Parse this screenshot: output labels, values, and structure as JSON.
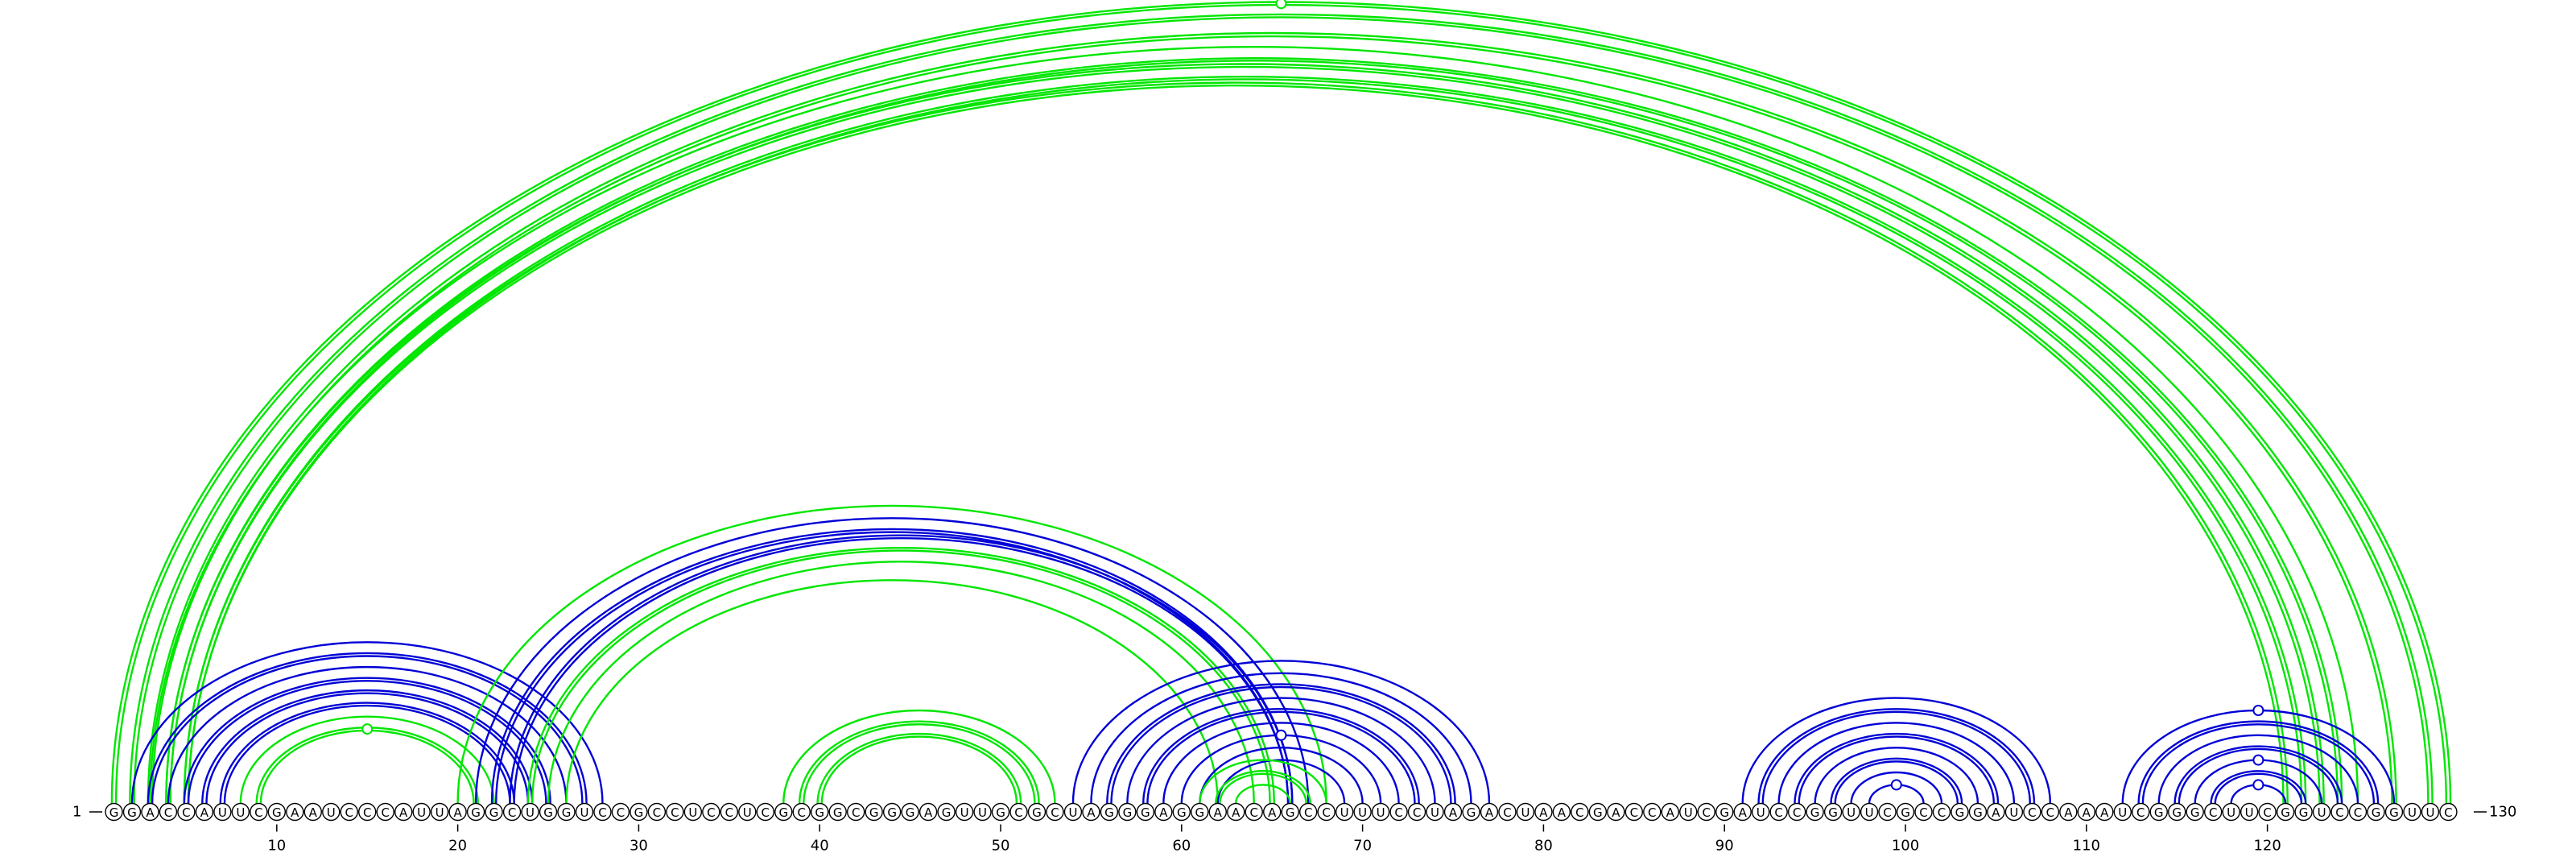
{
  "sequence": "GGACCAUUCGAAUCCCAUUAGGCUGGUCCGCCUCCUCGCGGCGGGAGUUGCGCUAGGGAGGAACAGCCUUUCCUAGACUAACGACCAUCGAUCCGGUUCGCCGGAUCCAAAUCGGGCUUCGGUCCGGUUC",
  "start_label": "1",
  "end_label": "130",
  "tick_labels": [
    "10",
    "20",
    "30",
    "40",
    "50",
    "60",
    "70",
    "80",
    "90",
    "100",
    "110",
    "120"
  ],
  "colors": {
    "green": "#00e600",
    "blue": "#0000d6"
  },
  "arcs": [
    {
      "i": 1,
      "j": 130,
      "color": "green",
      "double": true
    },
    {
      "i": 2,
      "j": 129,
      "color": "green",
      "double": true
    },
    {
      "i": 3,
      "j": 127,
      "color": "green",
      "double": true
    },
    {
      "i": 3,
      "j": 125,
      "color": "green",
      "double": false
    },
    {
      "i": 4,
      "j": 124,
      "color": "green",
      "double": true
    },
    {
      "i": 4,
      "j": 123,
      "color": "green",
      "double": true
    },
    {
      "i": 5,
      "j": 122,
      "color": "green",
      "double": true
    },
    {
      "i": 5,
      "j": 121,
      "color": "green",
      "double": true
    },
    {
      "i": 2,
      "j": 28,
      "color": "blue",
      "double": false
    },
    {
      "i": 3,
      "j": 27,
      "color": "blue",
      "double": true
    },
    {
      "i": 4,
      "j": 26,
      "color": "blue",
      "double": false
    },
    {
      "i": 5,
      "j": 25,
      "color": "blue",
      "double": true
    },
    {
      "i": 6,
      "j": 24,
      "color": "blue",
      "double": true
    },
    {
      "i": 7,
      "j": 23,
      "color": "blue",
      "double": true
    },
    {
      "i": 8,
      "j": 22,
      "color": "green",
      "double": false
    },
    {
      "i": 9,
      "j": 21,
      "color": "green",
      "double": true
    },
    {
      "i": 20,
      "j": 68,
      "color": "green",
      "double": false
    },
    {
      "i": 21,
      "j": 67,
      "color": "blue",
      "double": false
    },
    {
      "i": 22,
      "j": 66,
      "color": "blue",
      "double": true
    },
    {
      "i": 23,
      "j": 66,
      "color": "blue",
      "double": true
    },
    {
      "i": 24,
      "j": 65,
      "color": "green",
      "double": true
    },
    {
      "i": 25,
      "j": 64,
      "color": "green",
      "double": false
    },
    {
      "i": 26,
      "j": 62,
      "color": "green",
      "double": false
    },
    {
      "i": 38,
      "j": 53,
      "color": "green",
      "double": false
    },
    {
      "i": 39,
      "j": 52,
      "color": "green",
      "double": true
    },
    {
      "i": 40,
      "j": 51,
      "color": "green",
      "double": true
    },
    {
      "i": 54,
      "j": 77,
      "color": "blue",
      "double": false
    },
    {
      "i": 55,
      "j": 76,
      "color": "blue",
      "double": false
    },
    {
      "i": 56,
      "j": 75,
      "color": "blue",
      "double": true
    },
    {
      "i": 57,
      "j": 74,
      "color": "blue",
      "double": false
    },
    {
      "i": 58,
      "j": 73,
      "color": "blue",
      "double": true
    },
    {
      "i": 59,
      "j": 72,
      "color": "blue",
      "double": false
    },
    {
      "i": 60,
      "j": 71,
      "color": "blue",
      "double": false
    },
    {
      "i": 61,
      "j": 70,
      "color": "blue",
      "double": false
    },
    {
      "i": 62,
      "j": 69,
      "color": "blue",
      "double": false
    },
    {
      "i": 61,
      "j": 68,
      "color": "green",
      "double": false
    },
    {
      "i": 62,
      "j": 67,
      "color": "green",
      "double": true
    },
    {
      "i": 63,
      "j": 66,
      "color": "green",
      "double": false
    },
    {
      "i": 91,
      "j": 108,
      "color": "blue",
      "double": false
    },
    {
      "i": 92,
      "j": 107,
      "color": "blue",
      "double": true
    },
    {
      "i": 93,
      "j": 106,
      "color": "blue",
      "double": false
    },
    {
      "i": 94,
      "j": 105,
      "color": "blue",
      "double": true
    },
    {
      "i": 95,
      "j": 104,
      "color": "blue",
      "double": false
    },
    {
      "i": 96,
      "j": 103,
      "color": "blue",
      "double": true
    },
    {
      "i": 97,
      "j": 102,
      "color": "blue",
      "double": false
    },
    {
      "i": 98,
      "j": 101,
      "color": "blue",
      "double": false
    },
    {
      "i": 112,
      "j": 127,
      "color": "blue",
      "double": false
    },
    {
      "i": 113,
      "j": 126,
      "color": "blue",
      "double": true
    },
    {
      "i": 114,
      "j": 125,
      "color": "blue",
      "double": false
    },
    {
      "i": 115,
      "j": 124,
      "color": "blue",
      "double": true
    },
    {
      "i": 116,
      "j": 123,
      "color": "blue",
      "double": false
    },
    {
      "i": 117,
      "j": 122,
      "color": "blue",
      "double": true
    },
    {
      "i": 118,
      "j": 121,
      "color": "blue",
      "double": false
    }
  ],
  "markers": [
    {
      "i": 1,
      "j": 130,
      "color": "green"
    },
    {
      "i": 9,
      "j": 21,
      "color": "green"
    },
    {
      "i": 60,
      "j": 71,
      "color": "blue"
    },
    {
      "i": 98,
      "j": 101,
      "color": "blue"
    },
    {
      "i": 112,
      "j": 127,
      "color": "blue"
    },
    {
      "i": 116,
      "j": 123,
      "color": "blue"
    },
    {
      "i": 118,
      "j": 121,
      "color": "blue"
    }
  ]
}
